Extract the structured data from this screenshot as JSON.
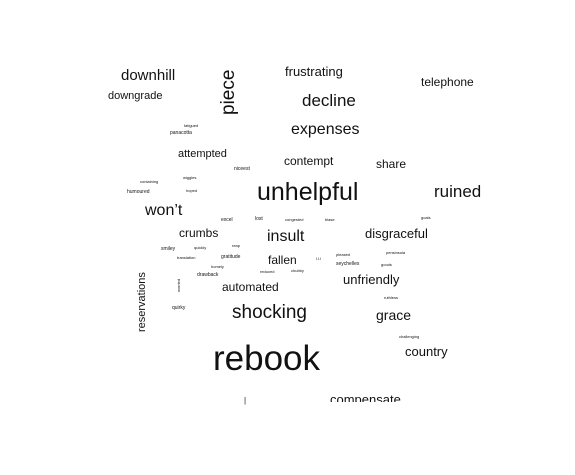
{
  "words": {
    "rebook": "rebook",
    "unhelpful": "unhelpful",
    "shocking": "shocking",
    "decline": "decline",
    "expenses": "expenses",
    "piece": "piece",
    "downhill": "downhill",
    "frustrating": "frustrating",
    "telephone": "telephone",
    "downgrade": "downgrade",
    "ruined": "ruined",
    "wont": "won’t",
    "insult": "insult",
    "disgraceful": "disgraceful",
    "contempt": "contempt",
    "share": "share",
    "attempted": "attempted",
    "crumbs": "crumbs",
    "fallen": "fallen",
    "unfriendly": "unfriendly",
    "automated": "automated",
    "grace": "grace",
    "country": "country",
    "compensate": "compensate",
    "reservations": "reservations",
    "fatigued": "fatigued",
    "panacotta": "panacotta",
    "niceest": "niceest",
    "wiggles": "wiggles",
    "containing": "containing",
    "humoured": "humoured",
    "hoped": "hoped",
    "excel": "excel",
    "lost": "lost",
    "congested": "congested",
    "blase": "blase",
    "goals": "goals",
    "smiley": "smiley",
    "quickly": "quickly",
    "reap": "reap",
    "translation": "translation",
    "gratitude": "gratitude",
    "pleased": "pleased",
    "seychelles": "seychelles",
    "pensinsula": "pensinsula",
    "homely": "homely",
    "drawback": "drawback",
    "reduced": "reduced",
    "chubby": "chubby",
    "goods": "goods",
    "worried": "worried",
    "quirky": "quirky",
    "ruthless": "ruthless",
    "challenging": "challenging",
    "lol": "l.l.l"
  }
}
